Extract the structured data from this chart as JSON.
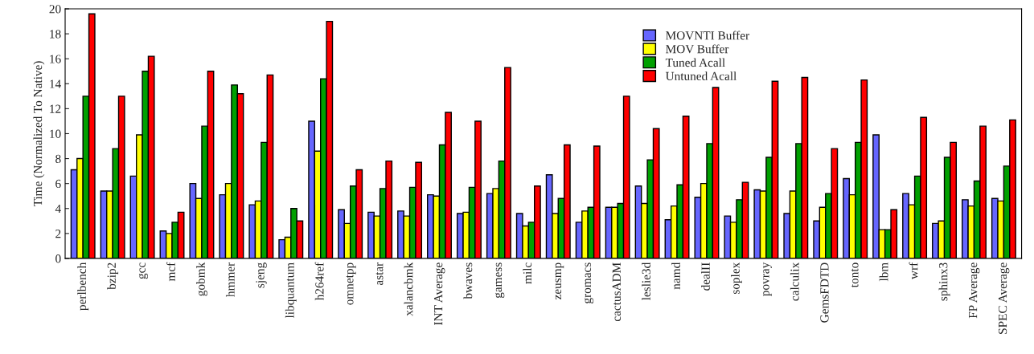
{
  "chart_data": {
    "type": "bar",
    "ylabel": "Time (Normalized To Native)",
    "categories": [
      "perlbench",
      "bzip2",
      "gcc",
      "mcf",
      "gobmk",
      "hmmer",
      "sjeng",
      "libquantum",
      "h264ref",
      "omnetpp",
      "astar",
      "xalancbmk",
      "INT Average",
      "bwaves",
      "gamess",
      "milc",
      "zeusmp",
      "gromacs",
      "cactusADM",
      "leslie3d",
      "namd",
      "dealII",
      "soplex",
      "povray",
      "calculix",
      "GemsFDTD",
      "tonto",
      "lbm",
      "wrf",
      "sphinx3",
      "FP Average",
      "SPEC Average"
    ],
    "series": [
      {
        "name": "MOVNTI Buffer",
        "color": "#6666ff",
        "values": [
          7.1,
          5.4,
          6.6,
          2.2,
          6.0,
          5.1,
          4.3,
          1.5,
          11.0,
          3.9,
          3.7,
          3.8,
          5.1,
          3.6,
          5.2,
          3.6,
          6.7,
          2.9,
          4.1,
          5.8,
          3.1,
          4.9,
          3.4,
          5.5,
          3.6,
          3.0,
          6.4,
          9.9,
          5.2,
          2.8,
          4.7,
          4.8
        ]
      },
      {
        "name": "MOV Buffer",
        "color": "#ffff00",
        "values": [
          8.0,
          5.4,
          9.9,
          2.0,
          4.8,
          6.0,
          4.6,
          1.7,
          8.6,
          2.8,
          3.4,
          3.4,
          5.0,
          3.7,
          5.6,
          2.6,
          3.6,
          3.8,
          4.1,
          4.4,
          4.2,
          6.0,
          2.9,
          5.4,
          5.4,
          4.1,
          5.1,
          2.3,
          4.3,
          3.0,
          4.2,
          4.6
        ]
      },
      {
        "name": "Tuned Acall",
        "color": "#00a000",
        "values": [
          13.0,
          8.8,
          15.0,
          2.9,
          10.6,
          13.9,
          9.3,
          4.0,
          14.4,
          5.8,
          5.6,
          5.7,
          9.1,
          5.7,
          7.8,
          2.9,
          4.8,
          4.1,
          4.4,
          7.9,
          5.9,
          9.2,
          4.7,
          8.1,
          9.2,
          5.2,
          9.3,
          2.3,
          6.6,
          8.1,
          6.2,
          7.4
        ]
      },
      {
        "name": "Untuned Acall",
        "color": "#ff0000",
        "values": [
          19.6,
          13.0,
          16.2,
          3.7,
          15.0,
          13.2,
          14.7,
          3.0,
          19.0,
          7.1,
          7.8,
          7.7,
          11.7,
          11.0,
          15.3,
          5.8,
          9.1,
          9.0,
          13.0,
          10.4,
          11.4,
          13.7,
          6.1,
          14.2,
          14.5,
          8.8,
          14.3,
          3.9,
          11.3,
          9.3,
          10.6,
          11.1
        ]
      }
    ],
    "ylim": [
      0,
      20
    ],
    "yticks": [
      0,
      2,
      4,
      6,
      8,
      10,
      12,
      14,
      16,
      18,
      20
    ],
    "grid": false,
    "legend": "top"
  }
}
